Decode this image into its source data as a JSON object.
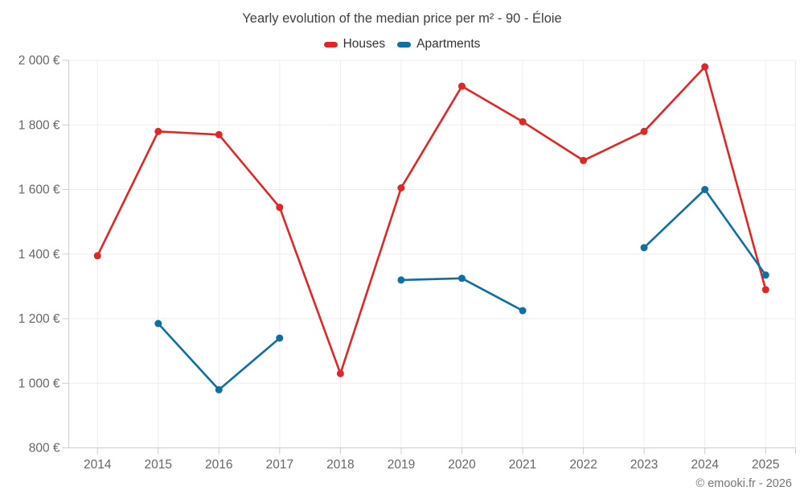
{
  "header": {
    "title": "Yearly evolution of the median price per m² - 90 - Éloie"
  },
  "legend": [
    {
      "label": "Houses",
      "color": "#e12626"
    },
    {
      "label": "Apartments",
      "color": "#0e6fa3"
    }
  ],
  "footer": {
    "credit": "© emooki.fr - 2026"
  },
  "chart_data": {
    "type": "line",
    "title": "Yearly evolution of the median price per m² - 90 - Éloie",
    "categories": [
      2014,
      2015,
      2016,
      2017,
      2018,
      2019,
      2020,
      2021,
      2022,
      2023,
      2024,
      2025
    ],
    "series": [
      {
        "name": "Houses",
        "color": "#e12626",
        "values": [
          1395,
          1780,
          1770,
          1545,
          1030,
          1605,
          1920,
          1810,
          1690,
          1780,
          1980,
          1290
        ]
      },
      {
        "name": "Apartments",
        "color": "#0e6fa3",
        "values": [
          null,
          1185,
          980,
          1140,
          null,
          1320,
          1325,
          1225,
          null,
          1420,
          1600,
          1335
        ]
      }
    ],
    "xlabel": "",
    "ylabel": "",
    "ylim": [
      800,
      2000
    ],
    "ytick_step": 200,
    "ytick_suffix": " €",
    "grid": true,
    "legend_position": "top",
    "colors": {
      "grid_line": "#ededed",
      "axis_line": "#cccccc",
      "tick_label": "#666666",
      "title_text": "#404040"
    }
  }
}
